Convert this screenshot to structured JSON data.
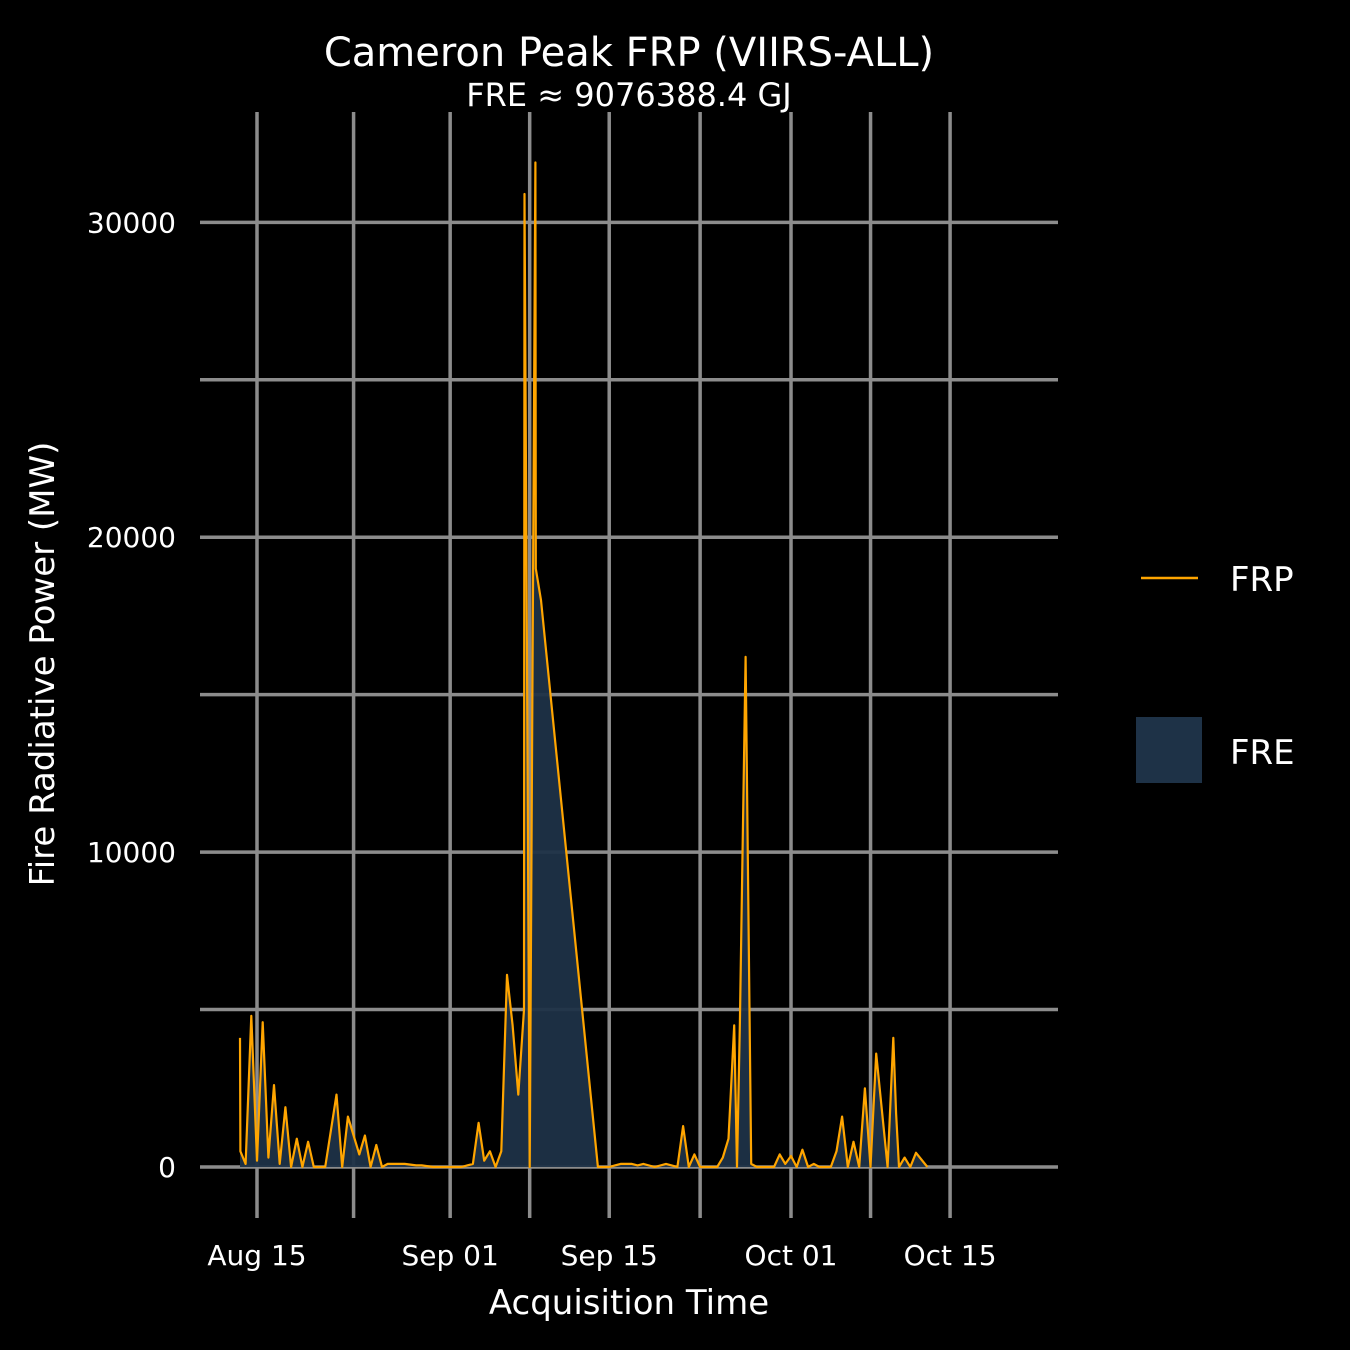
{
  "colors": {
    "background": "#000000",
    "grid": "#8c8c8c",
    "frp_line": "#FFA500",
    "fre_fill": "#1e3247"
  },
  "chart_data": {
    "type": "area",
    "title": "Cameron Peak FRP (VIIRS-ALL)",
    "subtitle": "FRE ≈ 9076388.4 GJ",
    "xlabel": "Acquisition Time",
    "ylabel": "Fire Radiative Power (MW)",
    "x_ticks": [
      "Aug 15",
      "Sep 01",
      "Sep 15",
      "Oct 01",
      "Oct 15"
    ],
    "y_ticks": [
      "0",
      "10000",
      "20000",
      "30000"
    ],
    "xlim": [
      "2020-08-11",
      "2020-10-15"
    ],
    "ylim": [
      -1500,
      33000
    ],
    "grid": true,
    "legend_position": "right",
    "legend": [
      {
        "label": "FRP",
        "kind": "line"
      },
      {
        "label": "FRE",
        "kind": "fill"
      }
    ],
    "series": [
      {
        "name": "FRP",
        "x": [
          "2020-08-13T12:00",
          "2020-08-13T13:00",
          "2020-08-14T00:00",
          "2020-08-14T12:00",
          "2020-08-15T00:00",
          "2020-08-15T12:00",
          "2020-08-16T00:00",
          "2020-08-16T12:00",
          "2020-08-17T00:00",
          "2020-08-17T12:00",
          "2020-08-18T00:00",
          "2020-08-18T12:00",
          "2020-08-19T00:00",
          "2020-08-19T12:00",
          "2020-08-20T00:00",
          "2020-08-20T12:00",
          "2020-08-21T00:00",
          "2020-08-22T00:00",
          "2020-08-22T12:00",
          "2020-08-23T00:00",
          "2020-08-23T12:00",
          "2020-08-24T00:00",
          "2020-08-24T12:00",
          "2020-08-25T00:00",
          "2020-08-25T12:00",
          "2020-08-26T00:00",
          "2020-08-26T12:00",
          "2020-08-27T00:00",
          "2020-08-28T00:00",
          "2020-08-29T00:00",
          "2020-08-29T12:00",
          "2020-08-30T12:00",
          "2020-08-31T00:00",
          "2020-09-01T00:00",
          "2020-09-02T00:00",
          "2020-09-02T12:00",
          "2020-09-03T00:00",
          "2020-09-03T12:00",
          "2020-09-04T00:00",
          "2020-09-04T12:00",
          "2020-09-05T00:00",
          "2020-09-05T12:00",
          "2020-09-06T00:00",
          "2020-09-06T12:00",
          "2020-09-07T00:00",
          "2020-09-07T12:00",
          "2020-09-07T13:00",
          "2020-09-08T00:00",
          "2020-09-08T12:00",
          "2020-09-08T13:00",
          "2020-09-09T00:00",
          "2020-09-14T00:00",
          "2020-09-15T00:00",
          "2020-09-15T12:00",
          "2020-09-16T00:00",
          "2020-09-17T00:00",
          "2020-09-17T12:00",
          "2020-09-18T00:00",
          "2020-09-19T00:00",
          "2020-09-20T00:00",
          "2020-09-20T12:00",
          "2020-09-21T00:00",
          "2020-09-21T12:00",
          "2020-09-22T00:00",
          "2020-09-22T12:00",
          "2020-09-23T00:00",
          "2020-09-24T00:00",
          "2020-09-24T12:00",
          "2020-09-25T00:00",
          "2020-09-25T12:00",
          "2020-09-26T00:00",
          "2020-09-26T06:00",
          "2020-09-26T12:00",
          "2020-09-27T00:00",
          "2020-09-27T12:00",
          "2020-09-28T00:00",
          "2020-09-28T12:00",
          "2020-09-29T00:00",
          "2020-09-29T12:00",
          "2020-09-30T00:00",
          "2020-09-30T12:00",
          "2020-10-01T00:00",
          "2020-10-01T12:00",
          "2020-10-02T00:00",
          "2020-10-02T12:00",
          "2020-10-03T00:00",
          "2020-10-03T12:00",
          "2020-10-04T00:00",
          "2020-10-04T12:00",
          "2020-10-05T00:00",
          "2020-10-05T12:00",
          "2020-10-06T00:00",
          "2020-10-06T12:00",
          "2020-10-07T00:00",
          "2020-10-07T12:00",
          "2020-10-08T00:00",
          "2020-10-08T12:00",
          "2020-10-09T00:00",
          "2020-10-09T12:00",
          "2020-10-10T00:00",
          "2020-10-10T06:00",
          "2020-10-10T12:00",
          "2020-10-11T00:00",
          "2020-10-11T12:00",
          "2020-10-12T00:00",
          "2020-10-13T00:00"
        ],
        "values": [
          4100,
          500,
          100,
          4800,
          200,
          4600,
          300,
          2600,
          100,
          1900,
          0,
          900,
          0,
          800,
          0,
          0,
          0,
          2300,
          0,
          1600,
          1000,
          400,
          1000,
          0,
          700,
          0,
          100,
          100,
          100,
          50,
          50,
          0,
          0,
          0,
          0,
          50,
          100,
          1400,
          200,
          500,
          0,
          500,
          6100,
          4500,
          2300,
          5000,
          30900,
          0,
          31900,
          19000,
          18000,
          0,
          0,
          50,
          100,
          100,
          50,
          100,
          0,
          100,
          50,
          0,
          1300,
          0,
          400,
          0,
          0,
          0,
          300,
          900,
          4500,
          0,
          4600,
          16200,
          100,
          0,
          0,
          0,
          0,
          400,
          100,
          350,
          0,
          550,
          0,
          100,
          0,
          0,
          0,
          500,
          1600,
          0,
          800,
          0,
          2500,
          0,
          3600,
          1800,
          0,
          4100,
          1700,
          0,
          300,
          0,
          450,
          0
        ]
      }
    ]
  }
}
